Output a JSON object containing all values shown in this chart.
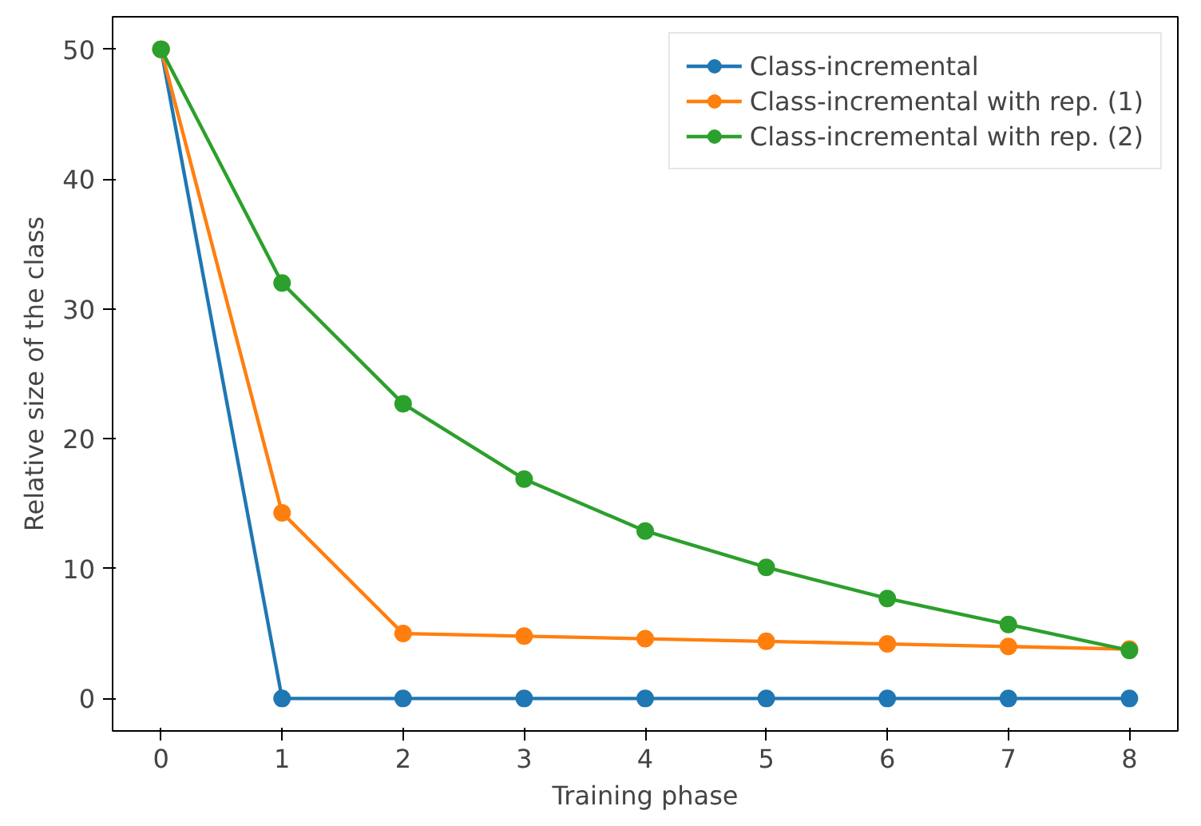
{
  "chart_data": {
    "type": "line",
    "xlabel": "Training phase",
    "ylabel": "Relative size of the class",
    "x": [
      0,
      1,
      2,
      3,
      4,
      5,
      6,
      7,
      8
    ],
    "series": [
      {
        "name": "Class-incremental",
        "color": "#1f77b4",
        "values": [
          50,
          0,
          0,
          0,
          0,
          0,
          0,
          0,
          0
        ]
      },
      {
        "name": "Class-incremental with rep. (1)",
        "color": "#ff7f0e",
        "values": [
          50,
          14.3,
          5.0,
          4.8,
          4.6,
          4.4,
          4.2,
          4.0,
          3.8
        ]
      },
      {
        "name": "Class-incremental with rep. (2)",
        "color": "#2ca02c",
        "values": [
          50,
          32.0,
          22.7,
          16.9,
          12.9,
          10.1,
          7.7,
          5.7,
          3.7
        ]
      }
    ],
    "xlim": [
      -0.4,
      8.4
    ],
    "ylim": [
      -2.5,
      52.5
    ],
    "xticks": [
      0,
      1,
      2,
      3,
      4,
      5,
      6,
      7,
      8
    ],
    "yticks": [
      0,
      10,
      20,
      30,
      40,
      50
    ],
    "marker": "circle",
    "line_style": "solid",
    "legend": "top right",
    "grid": false
  }
}
